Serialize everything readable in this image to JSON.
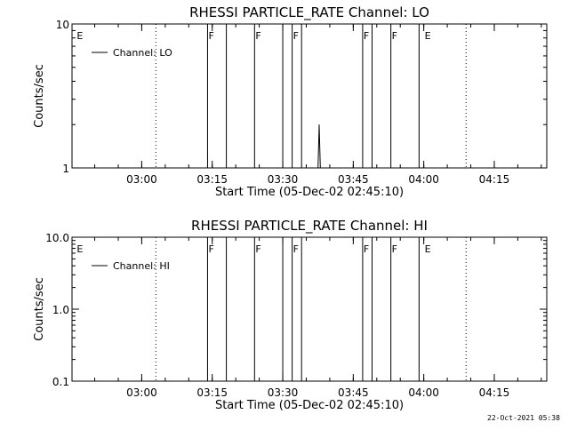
{
  "chart_data": [
    {
      "type": "line",
      "title": "RHESSI PARTICLE_RATE Channel: LO",
      "xlabel": "Start Time (05-Dec-02 02:45:10)",
      "ylabel": "Counts/sec",
      "xlim": [
        "02:45:10",
        "04:26:10"
      ],
      "ylim": [
        1,
        10
      ],
      "yscale": "log",
      "xticks": [
        "03:00",
        "03:15",
        "03:30",
        "03:45",
        "04:00",
        "04:15"
      ],
      "yticks": [
        "1",
        "10"
      ],
      "legend": {
        "placement": "top-left",
        "entries": [
          "Channel: LO"
        ]
      },
      "series": [
        {
          "name": "Channel: LO",
          "points": [
            [
              "03:37:30",
              1.0
            ],
            [
              "03:37:45",
              2.0
            ],
            [
              "03:38:00",
              1.0
            ]
          ]
        }
      ],
      "flag_lines": [
        "03:14",
        "03:18",
        "03:24",
        "03:30",
        "03:32",
        "03:34",
        "03:47",
        "03:49",
        "03:53",
        "03:59"
      ],
      "dotted_lines": [
        "03:03",
        "04:09"
      ],
      "flag_labels": [
        {
          "text": "E",
          "at": "02:46"
        },
        {
          "text": "F",
          "at": "03:14"
        },
        {
          "text": "F",
          "at": "03:24"
        },
        {
          "text": "F",
          "at": "03:32"
        },
        {
          "text": "F",
          "at": "03:47"
        },
        {
          "text": "F",
          "at": "03:53"
        },
        {
          "text": "E",
          "at": "04:00"
        }
      ]
    },
    {
      "type": "line",
      "title": "RHESSI PARTICLE_RATE Channel: HI",
      "xlabel": "Start Time (05-Dec-02 02:45:10)",
      "ylabel": "Counts/sec",
      "xlim": [
        "02:45:10",
        "04:26:10"
      ],
      "ylim": [
        0.1,
        10
      ],
      "yscale": "log",
      "xticks": [
        "03:00",
        "03:15",
        "03:30",
        "03:45",
        "04:00",
        "04:15"
      ],
      "yticks": [
        "0.1",
        "1.0",
        "10.0"
      ],
      "legend": {
        "placement": "top-left",
        "entries": [
          "Channel: HI"
        ]
      },
      "series": [
        {
          "name": "Channel: HI",
          "points": []
        }
      ],
      "flag_lines": [
        "03:14",
        "03:18",
        "03:24",
        "03:30",
        "03:32",
        "03:34",
        "03:47",
        "03:49",
        "03:53",
        "03:59"
      ],
      "dotted_lines": [
        "03:03",
        "04:09"
      ],
      "flag_labels": [
        {
          "text": "E",
          "at": "02:46"
        },
        {
          "text": "F",
          "at": "03:14"
        },
        {
          "text": "F",
          "at": "03:24"
        },
        {
          "text": "F",
          "at": "03:32"
        },
        {
          "text": "F",
          "at": "03:47"
        },
        {
          "text": "F",
          "at": "03:53"
        },
        {
          "text": "E",
          "at": "04:00"
        }
      ]
    }
  ],
  "footer": {
    "timestamp": "22-Oct-2021 05:38"
  }
}
